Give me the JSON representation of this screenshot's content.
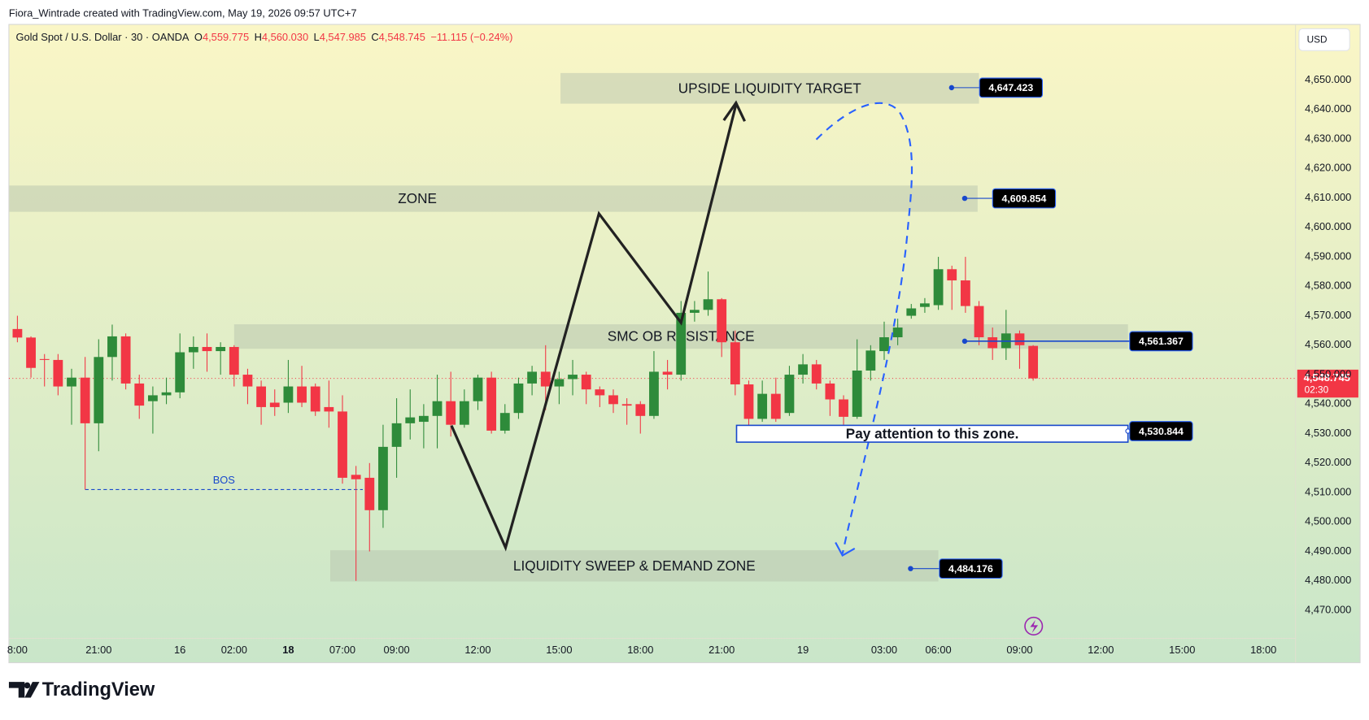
{
  "header": {
    "attribution": "Fiora_Wintrade created with TradingView.com, May 19, 2026 09:57 UTC+7",
    "symbol": "Gold Spot / U.S. Dollar · 30 · OANDA",
    "ohlc": [
      {
        "key": "O",
        "value": "4,559.775"
      },
      {
        "key": "H",
        "value": "4,560.030"
      },
      {
        "key": "L",
        "value": "4,547.985"
      },
      {
        "key": "C",
        "value": "4,548.745"
      }
    ],
    "change": "−11.115 (−0.24%)",
    "currency": "USD"
  },
  "chart_data": {
    "type": "candlestick",
    "up_color": "#2e8b3a",
    "down_color": "#f23645",
    "categories": [
      "8:00",
      null,
      null,
      null,
      null,
      null,
      "21:00",
      null,
      null,
      null,
      null,
      null,
      "16",
      null,
      null,
      null,
      "02:00",
      null,
      null,
      null,
      "18",
      null,
      null,
      null,
      "07:00",
      null,
      null,
      null,
      "09:00",
      null,
      null,
      null,
      null,
      null,
      "12:00",
      null,
      null,
      null,
      null,
      null,
      "15:00",
      null,
      null,
      null,
      null,
      null,
      "18:00",
      null,
      null,
      null,
      null,
      null,
      "21:00",
      null,
      null,
      null,
      null,
      null,
      "19",
      null,
      null,
      null,
      null,
      null,
      "03:00",
      null,
      null,
      null,
      "06:00",
      null,
      null,
      null,
      null,
      null,
      "09:00",
      null,
      null,
      null,
      null,
      null,
      "12:00",
      null,
      null,
      null,
      null,
      null,
      "15:00",
      null,
      null,
      null,
      null,
      null,
      "18:00",
      null,
      null
    ],
    "open": [
      4565.5,
      4562.6,
      4555.3,
      4555,
      4546,
      4549,
      4533.5,
      4556,
      4563,
      4547,
      4541,
      4543,
      4544,
      4557.6,
      4559.4,
      4558,
      4559.4,
      4550,
      4546,
      4540.5,
      4540.5,
      4546,
      4546,
      4539,
      4537.5,
      4516,
      4515,
      4504,
      4525.5,
      4533.5,
      4534,
      4536,
      4541,
      4533,
      4541,
      4549,
      4531,
      4537,
      4547,
      4551,
      4546,
      4548.5,
      4550,
      4545,
      4543,
      4540,
      4540,
      4536,
      4551,
      4550,
      4571,
      4572,
      4575.6,
      4561,
      4546.7,
      4535,
      4543.5,
      4537,
      4550,
      4553.5,
      4547,
      4541.6,
      4535.7,
      4551.4,
      4558,
      4562.7,
      4570,
      4573,
      4573.6,
      4585.8,
      4582,
      4573.3,
      4562.7,
      4559,
      4564,
      4559.775,
      null,
      null,
      null,
      null,
      null,
      null,
      null,
      null,
      null,
      null,
      null,
      null,
      null,
      null,
      null,
      null,
      null,
      null,
      null
    ],
    "high": [
      4570,
      4563,
      4557,
      4557,
      4552,
      4556,
      4562,
      4567,
      4564,
      4550,
      4546,
      4549,
      4564,
      4563,
      4564,
      4561,
      4560,
      4552,
      4548,
      4545,
      4555,
      4553,
      4547,
      4548,
      4543,
      4519,
      4520,
      4533,
      4542,
      4545,
      4540,
      4550,
      4551,
      4545,
      4550,
      4551,
      4540,
      4549,
      4553,
      4560,
      4551,
      4555,
      4551,
      4546,
      4545,
      4542,
      4541,
      4558,
      4555,
      4575,
      4575,
      4585,
      4576,
      4565,
      4548,
      4548,
      4549,
      4553,
      4557,
      4555,
      4548,
      4543,
      4562,
      4560,
      4568,
      4569,
      4574,
      4576,
      4590,
      4587,
      4590,
      4575,
      4566,
      4572,
      4565,
      4560.03,
      null,
      null,
      null,
      null,
      null,
      null,
      null,
      null,
      null,
      null,
      null,
      null,
      null,
      null,
      null,
      null,
      null,
      null,
      null
    ],
    "low": [
      4561,
      4549,
      4546,
      4543,
      4533,
      4511,
      4524,
      4548,
      4545,
      4535,
      4530,
      4540,
      4542,
      4552,
      4551,
      4550,
      4546,
      4540,
      4533,
      4536,
      4537,
      4539,
      4536,
      4532,
      4513,
      4480,
      4490,
      4498,
      4515,
      4528,
      4525,
      4525,
      4529,
      4532,
      4538,
      4530,
      4530,
      4535,
      4543,
      4538,
      4540,
      4543,
      4540,
      4539,
      4537,
      4533,
      4530,
      4535,
      4545,
      4548,
      4568,
      4570,
      4556,
      4543,
      4532,
      4534,
      4534,
      4536,
      4547,
      4545,
      4536,
      4533,
      4535,
      4548,
      4555,
      4560,
      4569,
      4571,
      4572,
      4572,
      4571,
      4560,
      4555,
      4555,
      4552,
      4547.985,
      null,
      null,
      null,
      null,
      null,
      null,
      null,
      null,
      null,
      null,
      null,
      null,
      null,
      null,
      null,
      null,
      null,
      null,
      null
    ],
    "close": [
      4562.6,
      4552.3,
      4555,
      4546,
      4549,
      4533.5,
      4556,
      4563,
      4547,
      4539.5,
      4543,
      4544,
      4557.6,
      4559.4,
      4558,
      4559.4,
      4550,
      4546,
      4539,
      4539,
      4546,
      4540.5,
      4537.5,
      4537.5,
      4515,
      4514.5,
      4504,
      4525.5,
      4533.5,
      4535.5,
      4536,
      4541,
      4533,
      4541,
      4549,
      4531,
      4537,
      4547,
      4551,
      4546,
      4548.5,
      4550,
      4545,
      4543,
      4540,
      4539.5,
      4536,
      4551,
      4550,
      4571,
      4572,
      4575.6,
      4561,
      4546.7,
      4535,
      4543.5,
      4535,
      4550,
      4553.5,
      4547,
      4541.6,
      4535.7,
      4551.4,
      4558.2,
      4562.7,
      4566,
      4572.5,
      4574.2,
      4585.8,
      4582,
      4573.3,
      4562.7,
      4559,
      4564,
      4560,
      4548.745,
      null,
      null,
      null,
      null,
      null,
      null,
      null,
      null,
      null,
      null,
      null,
      null,
      null,
      null,
      null,
      null,
      null,
      null,
      null
    ],
    "ylim": [
      4460.5,
      4668.9
    ],
    "yticks": [
      {
        "value": 4650,
        "label": "4,650.000"
      },
      {
        "value": 4640,
        "label": "4,640.000"
      },
      {
        "value": 4630,
        "label": "4,630.000"
      },
      {
        "value": 4620,
        "label": "4,620.000"
      },
      {
        "value": 4610,
        "label": "4,610.000"
      },
      {
        "value": 4600,
        "label": "4,600.000"
      },
      {
        "value": 4590,
        "label": "4,590.000"
      },
      {
        "value": 4580,
        "label": "4,580.000"
      },
      {
        "value": 4570,
        "label": "4,570.000"
      },
      {
        "value": 4560,
        "label": "4,560.000"
      },
      {
        "value": 4550,
        "label": "4,550.000"
      },
      {
        "value": 4540,
        "label": "4,540.000"
      },
      {
        "value": 4530,
        "label": "4,530.000"
      },
      {
        "value": 4520,
        "label": "4,520.000"
      },
      {
        "value": 4510,
        "label": "4,510.000"
      },
      {
        "value": 4500,
        "label": "4,500.000"
      },
      {
        "value": 4490,
        "label": "4,490.000"
      },
      {
        "value": 4480,
        "label": "4,480.000"
      },
      {
        "value": 4470,
        "label": "4,470.000"
      }
    ],
    "grid": false,
    "zones": [
      {
        "label": "UPSIDE LIQUIDITY TARGET",
        "range": [
          4642,
          4652.4
        ],
        "x": [
          40.1,
          71
        ],
        "tag": {
          "value": 4647.423,
          "label": "4,647.423"
        }
      },
      {
        "label": "ZONE",
        "range": [
          4605.3,
          4614.2
        ],
        "x": [
          -0.6,
          70.9
        ],
        "tag": {
          "value": 4609.854,
          "label": "4,609.854"
        }
      },
      {
        "label": "SMC OB RESISTANCE",
        "range": [
          4558.8,
          4567.1
        ],
        "x": [
          16,
          82
        ],
        "tag": {
          "value": 4561.367,
          "label": "4,561.367"
        }
      },
      {
        "label": "Pay attention to this zone.",
        "range": [
          4527.1,
          4532.8
        ],
        "x": [
          53.1,
          82
        ],
        "tag": {
          "value": 4530.844,
          "label": "4,530.844"
        }
      },
      {
        "label": "LIQUIDITY SWEEP & DEMAND ZONE",
        "range": [
          4479.8,
          4490.4
        ],
        "x": [
          23.1,
          68
        ],
        "tag": {
          "value": 4484.176,
          "label": "4,484.176"
        }
      }
    ],
    "bos": {
      "label": "BOS",
      "value": 4511,
      "x": [
        5,
        25.5
      ]
    },
    "last_price": {
      "value": 4548.745,
      "label": "4,548.745",
      "countdown": "02:30"
    }
  },
  "footer": {
    "brand": "TradingView"
  }
}
